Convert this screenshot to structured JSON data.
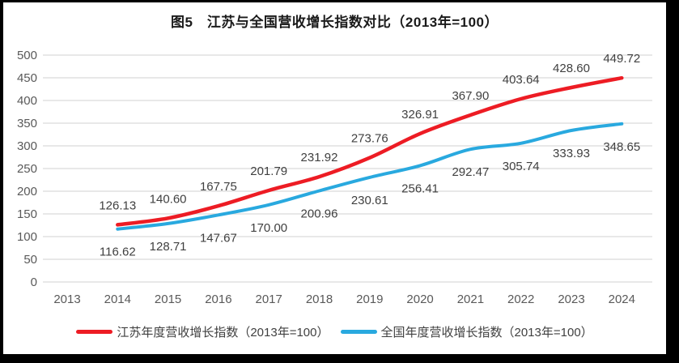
{
  "frame": {
    "border_color": "#000000",
    "background": "#ffffff"
  },
  "header": {
    "title": "图5　江苏与全国营收增长指数对比（2013年=100）"
  },
  "chart_data": {
    "type": "line",
    "title": "图5　江苏与全国营收增长指数对比（2013年=100）",
    "categories": [
      "2013",
      "2014",
      "2015",
      "2016",
      "2017",
      "2018",
      "2019",
      "2020",
      "2021",
      "2022",
      "2023",
      "2024"
    ],
    "series": [
      {
        "name": "江苏年度营收增长指数（2013年=100）",
        "color": "#ED1C24",
        "label_position": "above",
        "values": [
          null,
          126.13,
          140.6,
          167.75,
          201.79,
          231.92,
          273.76,
          326.91,
          367.9,
          403.64,
          428.6,
          449.72
        ]
      },
      {
        "name": "全国年度营收增长指数（2013年=100）",
        "color": "#29A9DF",
        "label_position": "below",
        "values": [
          null,
          116.62,
          128.71,
          147.67,
          170.0,
          200.96,
          230.61,
          256.41,
          292.47,
          305.74,
          333.93,
          348.65
        ]
      }
    ],
    "ylim": [
      0,
      500
    ],
    "ytick_step": 50,
    "yticks": [
      0,
      50,
      100,
      150,
      200,
      250,
      300,
      350,
      400,
      450,
      500
    ],
    "grid": "horizontal-only",
    "gridline_color": "#D9D9D9",
    "axis_text_color": "#595959",
    "data_label_color": "#404040",
    "data_labels_decimals": 2,
    "legend_position": "bottom"
  }
}
